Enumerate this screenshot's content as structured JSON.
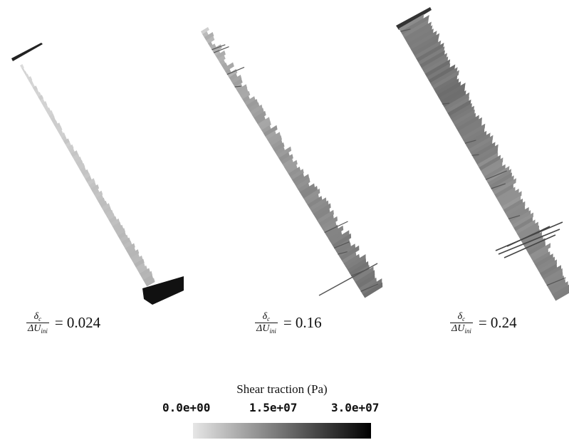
{
  "panels": [
    {
      "label_num": "δ",
      "label_num_sub": "c",
      "label_den": "ΔU",
      "label_den_sub": "ini",
      "label_value": "= 0.024",
      "ratio": 0.024
    },
    {
      "label_num": "δ",
      "label_num_sub": "c",
      "label_den": "ΔU",
      "label_den_sub": "ini",
      "label_value": "= 0.16",
      "ratio": 0.16
    },
    {
      "label_num": "δ",
      "label_num_sub": "c",
      "label_den": "ΔU",
      "label_den_sub": "ini",
      "label_value": "= 0.24",
      "ratio": 0.24
    }
  ],
  "colorbar": {
    "title": "Shear traction (Pa)",
    "ticks": [
      "0.0e+00",
      "1.5e+07",
      "3.0e+07"
    ],
    "range": [
      0,
      30000000
    ],
    "color_low": "#e6e6e6",
    "color_high": "#000000"
  }
}
